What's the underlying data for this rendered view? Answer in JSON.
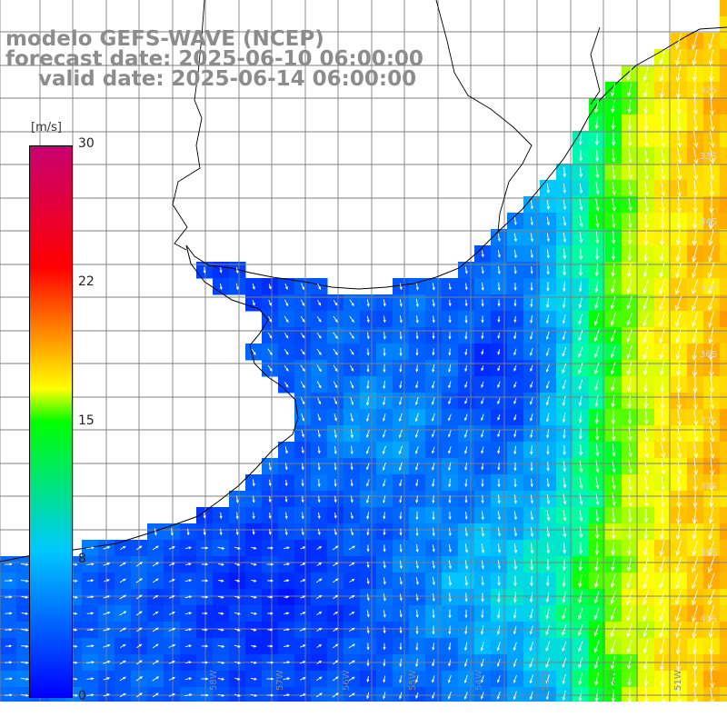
{
  "title": {
    "line1": "modelo GEFS-WAVE (NCEP)",
    "line2": "forecast date: 2025-06-10 06:00:00",
    "line3": "valid date: 2025-06-14 06:00:00"
  },
  "colorbar": {
    "unit": "[m/s]",
    "min": 0,
    "max": 30,
    "ticks": [
      "30",
      "22",
      "15",
      "8",
      "0"
    ],
    "colors": [
      "#0000ff",
      "#00c8ff",
      "#00ff00",
      "#ffff00",
      "#ff8c00",
      "#ff0000",
      "#c80070"
    ]
  },
  "map": {
    "latitude_labels": [
      "32S",
      "33S",
      "34S",
      "35S",
      "36S",
      "37S",
      "38S",
      "39S",
      "40S"
    ],
    "longitude_labels": [
      "58W",
      "57W",
      "56W",
      "55W",
      "54W",
      "53W",
      "52W",
      "51W"
    ],
    "variable": "wind speed [m/s] with direction arrows"
  }
}
